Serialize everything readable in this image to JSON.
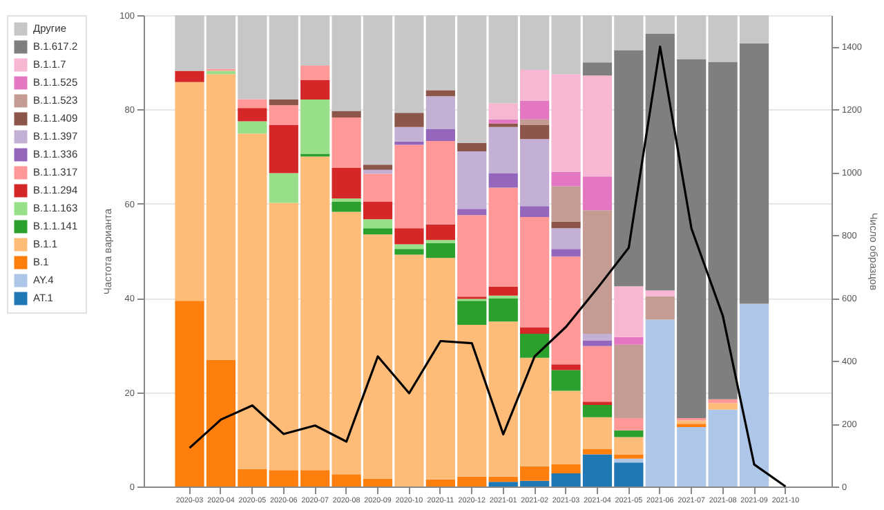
{
  "chart_data": {
    "type": "bar",
    "stacked": true,
    "ylabel": "Частота варианта",
    "y2label": "Число образцов",
    "categories": [
      "2020-03",
      "2020-04",
      "2020-05",
      "2020-06",
      "2020-07",
      "2020-08",
      "2020-09",
      "2020-10",
      "2020-11",
      "2020-12",
      "2021-01",
      "2021-02",
      "2021-03",
      "2021-04",
      "2021-05",
      "2021-06",
      "2021-07",
      "2021-08",
      "2021-09",
      "2021-10"
    ],
    "ylim": [
      0,
      100
    ],
    "yticks": [
      0,
      20,
      40,
      60,
      80,
      100
    ],
    "y2lim": [
      0,
      1500
    ],
    "y2ticks": [
      0,
      200,
      400,
      600,
      800,
      1000,
      1200,
      1400
    ],
    "grid": "y",
    "legend": "left",
    "series": [
      {
        "name": "AT.1",
        "color": "#1f77b4",
        "values": [
          null,
          null,
          null,
          null,
          null,
          null,
          null,
          null,
          null,
          null,
          1.0,
          1.2,
          2.8,
          6.8,
          5.1,
          null,
          null,
          null,
          null,
          null
        ]
      },
      {
        "name": "AY.4",
        "color": "#aec7e8",
        "values": [
          null,
          null,
          null,
          null,
          null,
          null,
          null,
          null,
          null,
          null,
          null,
          null,
          null,
          null,
          0.8,
          35.4,
          12.6,
          16.3,
          38.8,
          null
        ]
      },
      {
        "name": "B.1",
        "color": "#ff7f0e",
        "values": [
          39.4,
          26.9,
          3.7,
          3.5,
          3.5,
          2.6,
          1.7,
          null,
          1.5,
          2.1,
          1.1,
          3.1,
          1.9,
          1.1,
          0.9,
          null,
          0.7,
          null,
          null,
          null
        ]
      },
      {
        "name": "B.1.1",
        "color": "#ffbb78",
        "values": [
          46.4,
          60.6,
          71.2,
          56.7,
          66.5,
          55.7,
          51.8,
          49.2,
          47.0,
          32.2,
          32.9,
          23.0,
          15.6,
          6.8,
          3.7,
          null,
          0.7,
          1.4,
          null,
          null
        ]
      },
      {
        "name": "B.1.1.141",
        "color": "#2ca02c",
        "values": [
          null,
          null,
          null,
          null,
          0.6,
          2.1,
          1.3,
          1.2,
          3.1,
          5.1,
          4.9,
          5.1,
          4.4,
          2.6,
          1.4,
          null,
          null,
          null,
          null,
          null
        ]
      },
      {
        "name": "B.1.1.163",
        "color": "#98df8a",
        "values": [
          null,
          0.7,
          2.6,
          6.3,
          11.5,
          0.7,
          1.9,
          1.0,
          0.7,
          0.4,
          0.6,
          null,
          null,
          null,
          null,
          null,
          null,
          null,
          null,
          null
        ]
      },
      {
        "name": "B.1.1.294",
        "color": "#d62728",
        "values": [
          2.4,
          null,
          2.8,
          10.2,
          4.1,
          6.5,
          3.7,
          3.4,
          3.3,
          0.5,
          1.9,
          1.4,
          1.2,
          0.7,
          null,
          null,
          null,
          null,
          null,
          null
        ]
      },
      {
        "name": "B.1.1.317",
        "color": "#ff9896",
        "values": [
          null,
          0.4,
          1.9,
          4.2,
          3.1,
          10.7,
          6.0,
          17.7,
          17.7,
          17.3,
          21.0,
          23.4,
          22.9,
          11.8,
          2.6,
          null,
          0.5,
          0.8,
          null,
          null
        ]
      },
      {
        "name": "B.1.1.336",
        "color": "#9467bd",
        "values": [
          null,
          null,
          null,
          null,
          null,
          null,
          null,
          0.7,
          2.5,
          1.3,
          3.1,
          2.3,
          1.6,
          1.2,
          null,
          null,
          null,
          null,
          null,
          null
        ]
      },
      {
        "name": "B.1.1.397",
        "color": "#c5b0d5",
        "values": [
          null,
          null,
          null,
          null,
          null,
          null,
          0.8,
          3.1,
          7.0,
          12.2,
          9.8,
          14.2,
          4.4,
          1.4,
          null,
          null,
          null,
          null,
          null,
          null
        ]
      },
      {
        "name": "B.1.1.409",
        "color": "#8c564b",
        "values": [
          null,
          null,
          null,
          1.2,
          null,
          1.4,
          1.1,
          3.0,
          1.3,
          1.8,
          0.7,
          3.0,
          1.4,
          null,
          null,
          null,
          null,
          null,
          null,
          null
        ]
      },
      {
        "name": "B.1.1.523",
        "color": "#c49c94",
        "values": [
          null,
          null,
          null,
          null,
          null,
          null,
          null,
          null,
          null,
          null,
          null,
          1.2,
          7.5,
          26.2,
          15.6,
          5.0,
          null,
          null,
          null,
          null
        ]
      },
      {
        "name": "B.1.1.525",
        "color": "#e377c2",
        "values": [
          null,
          null,
          null,
          null,
          null,
          null,
          null,
          null,
          null,
          null,
          0.9,
          4.0,
          3.1,
          7.2,
          1.6,
          null,
          null,
          null,
          null,
          null
        ]
      },
      {
        "name": "B.1.1.7",
        "color": "#f7b6d2",
        "values": [
          null,
          null,
          null,
          null,
          null,
          null,
          null,
          null,
          null,
          null,
          3.4,
          6.5,
          20.7,
          21.4,
          10.8,
          1.2,
          null,
          null,
          null,
          null
        ]
      },
      {
        "name": "B.1.617.2",
        "color": "#7f7f7f",
        "values": [
          null,
          null,
          null,
          null,
          null,
          null,
          null,
          null,
          null,
          null,
          null,
          null,
          null,
          2.8,
          50.1,
          54.5,
          76.2,
          71.6,
          55.2,
          null
        ]
      },
      {
        "name": "Другие",
        "color": "#c7c7c7",
        "values": [
          11.8,
          11.4,
          17.8,
          17.9,
          10.7,
          20.3,
          31.7,
          20.7,
          15.9,
          27.1,
          18.7,
          11.6,
          12.5,
          10.0,
          7.4,
          3.9,
          9.3,
          9.9,
          6.0,
          null
        ]
      },
      {
        "type": "line",
        "axis": "y2",
        "color": "#000000",
        "values": [
          123,
          213,
          258,
          167,
          194,
          143,
          414,
          297,
          463,
          456,
          166,
          414,
          508,
          631,
          760,
          1400,
          821,
          543,
          70,
          0
        ]
      }
    ]
  }
}
